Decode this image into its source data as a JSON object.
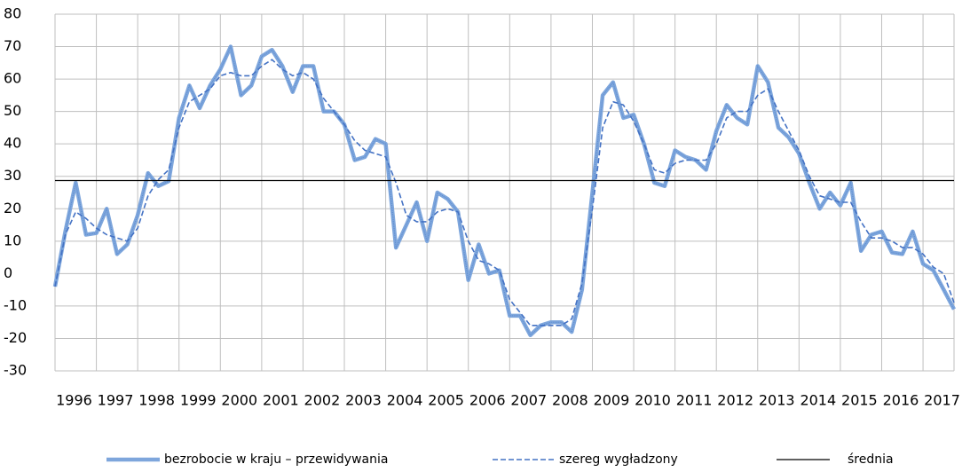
{
  "chart_data": {
    "type": "line",
    "categories": [
      "1996",
      null,
      null,
      null,
      "1997",
      null,
      null,
      null,
      "1998",
      null,
      null,
      null,
      "1999",
      null,
      null,
      null,
      "2000",
      null,
      null,
      null,
      "2001",
      null,
      null,
      null,
      "2002",
      null,
      null,
      null,
      "2003",
      null,
      null,
      null,
      "2004",
      null,
      null,
      null,
      "2005",
      null,
      null,
      null,
      "2006",
      null,
      null,
      null,
      "2007",
      null,
      null,
      null,
      "2008",
      null,
      null,
      null,
      "2009",
      null,
      null,
      null,
      "2010",
      null,
      null,
      null,
      "2011",
      null,
      null,
      null,
      "2012",
      null,
      null,
      null,
      "2013",
      null,
      null,
      null,
      "2014",
      null,
      null,
      null,
      "2015",
      null,
      null,
      null,
      "2016",
      null,
      null,
      null,
      "2017",
      null,
      null,
      null
    ],
    "series": [
      {
        "name": "bezrobocie w kraju – przewidywania",
        "color": "#7ea6dc",
        "values": [
          -4,
          13,
          28,
          12,
          12.5,
          20,
          6,
          9,
          18,
          31,
          27,
          28.5,
          48,
          58,
          51,
          58,
          63,
          70,
          55,
          58,
          67,
          69,
          64,
          56,
          64,
          64,
          50,
          50,
          46,
          35,
          36,
          41.5,
          40,
          8,
          15,
          22,
          10,
          25,
          23,
          19,
          -2,
          9,
          0,
          1,
          -13,
          -13,
          -19,
          -16,
          -15,
          -15,
          -18,
          -5,
          25,
          55,
          59,
          48,
          49,
          40,
          28,
          27,
          38,
          36,
          35,
          32,
          44,
          52,
          48,
          46,
          64,
          59,
          45,
          42,
          37,
          28,
          20,
          25,
          21,
          28,
          7,
          12,
          13,
          6.5,
          6,
          13,
          3,
          1,
          -5,
          -11
        ]
      },
      {
        "name": "szereg wygładzony",
        "color": "#4472c4",
        "values": [
          -4,
          12,
          19,
          17,
          14,
          12,
          11,
          10,
          14,
          24,
          29,
          32,
          45,
          53,
          55,
          57,
          61,
          62,
          61,
          61,
          64,
          66,
          63,
          61,
          62,
          60,
          54,
          50,
          46,
          41,
          38,
          37,
          36,
          28,
          18,
          16,
          16,
          19,
          20,
          19,
          10,
          4,
          3,
          1,
          -8,
          -12,
          -16,
          -16,
          -16,
          -16,
          -14,
          -3,
          20,
          45,
          53,
          52,
          47,
          40,
          32,
          31,
          34,
          35,
          35,
          35,
          40,
          48,
          50,
          50,
          55,
          57,
          50,
          44,
          38,
          30,
          24,
          23,
          22,
          22,
          16,
          11,
          11,
          10,
          8,
          8,
          6,
          2,
          0,
          -9
        ]
      },
      {
        "name": "średnia",
        "color": "#000000",
        "values": [
          28.7,
          28.7,
          28.7,
          28.7,
          28.7,
          28.7,
          28.7,
          28.7,
          28.7,
          28.7,
          28.7,
          28.7,
          28.7,
          28.7,
          28.7,
          28.7,
          28.7,
          28.7,
          28.7,
          28.7,
          28.7,
          28.7,
          28.7,
          28.7,
          28.7,
          28.7,
          28.7,
          28.7,
          28.7,
          28.7,
          28.7,
          28.7,
          28.7,
          28.7,
          28.7,
          28.7,
          28.7,
          28.7,
          28.7,
          28.7,
          28.7,
          28.7,
          28.7,
          28.7,
          28.7,
          28.7,
          28.7,
          28.7,
          28.7,
          28.7,
          28.7,
          28.7,
          28.7,
          28.7,
          28.7,
          28.7,
          28.7,
          28.7,
          28.7,
          28.7,
          28.7,
          28.7,
          28.7,
          28.7,
          28.7,
          28.7,
          28.7,
          28.7,
          28.7,
          28.7,
          28.7,
          28.7,
          28.7,
          28.7,
          28.7,
          28.7,
          28.7,
          28.7,
          28.7,
          28.7,
          28.7,
          28.7,
          28.7,
          28.7,
          28.7,
          28.7,
          28.7,
          28.7
        ]
      }
    ],
    "ylim": [
      -30,
      80
    ],
    "yticks": [
      -30,
      -20,
      -10,
      0,
      10,
      20,
      30,
      40,
      50,
      60,
      70,
      80
    ],
    "grid": true,
    "legend": "bottom"
  }
}
